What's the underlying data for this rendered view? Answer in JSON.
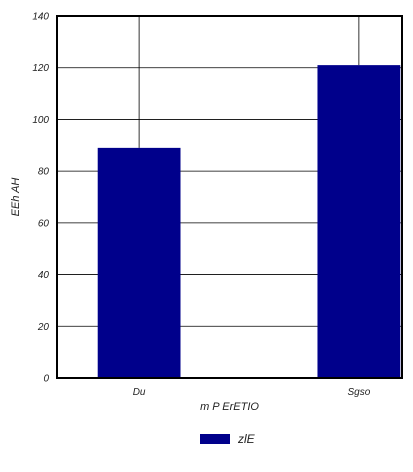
{
  "chart_data": {
    "type": "bar",
    "categories": [
      "Du",
      "Sgso"
    ],
    "series": [
      {
        "name": "zlE",
        "values": [
          89,
          121
        ],
        "color": "#00008b"
      }
    ],
    "xlabel": "m P ErETIO",
    "ylabel": "EEh AH",
    "ylim": [
      0,
      140
    ],
    "yticks": [
      0,
      20,
      40,
      60,
      80,
      100,
      120,
      140
    ],
    "grid": true,
    "legend_position": "bottom-center"
  }
}
